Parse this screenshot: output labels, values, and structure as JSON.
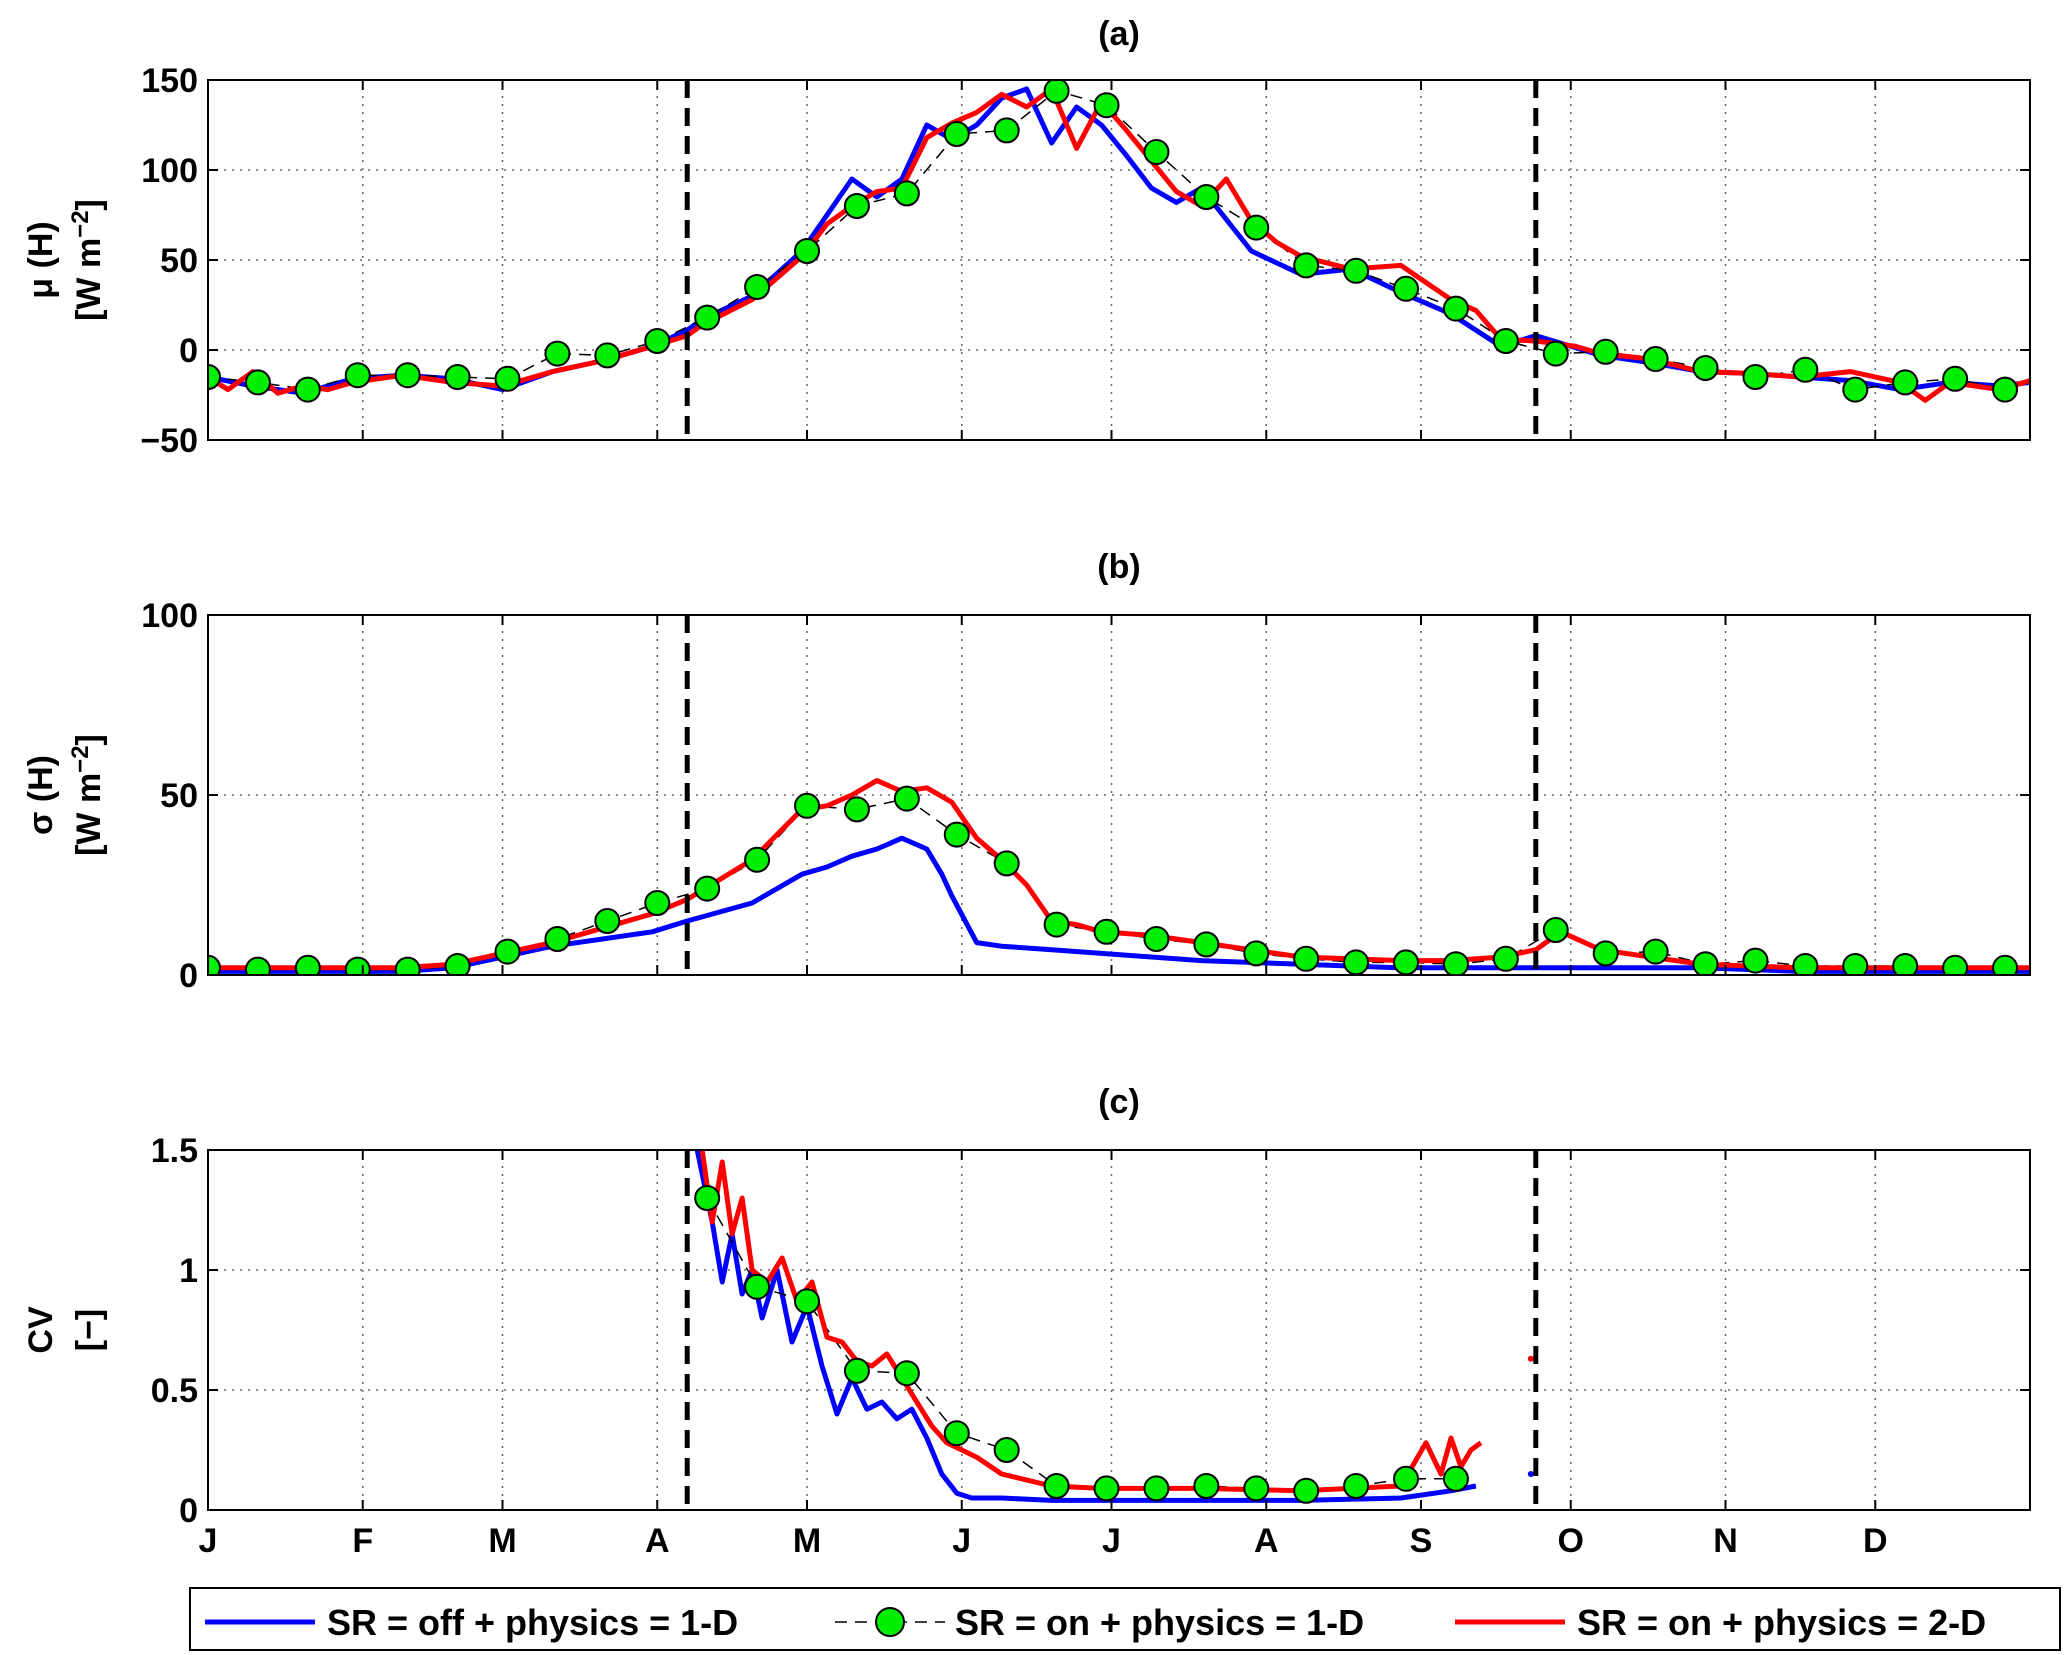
{
  "chart_data": [
    {
      "type": "line",
      "title": "(a)",
      "ylabel_line1": "μ (H)",
      "ylabel_line2": "[W m",
      "ylabel_sup": "−2",
      "ylabel_close": "]",
      "ylim": [
        -50,
        150
      ],
      "yticks": [
        150,
        100,
        50,
        0,
        -50
      ],
      "ytick_labels": [
        "150",
        "100",
        "50",
        "0",
        "−50"
      ],
      "xlim": [
        1,
        366
      ],
      "dashed_vlines": [
        97,
        267
      ],
      "grid": true,
      "series": [
        {
          "name": "SR = off + physics = 1-D",
          "color": "#0000ff",
          "style": "solid",
          "x": [
            1,
            10,
            20,
            30,
            40,
            50,
            60,
            70,
            80,
            90,
            97,
            100,
            110,
            120,
            125,
            130,
            135,
            140,
            145,
            150,
            155,
            160,
            165,
            170,
            175,
            180,
            185,
            190,
            195,
            200,
            210,
            220,
            230,
            240,
            250,
            260,
            267,
            280,
            290,
            300,
            310,
            320,
            330,
            340,
            350,
            360,
            366
          ],
          "y": [
            -15,
            -20,
            -24,
            -16,
            -14,
            -16,
            -22,
            -12,
            -6,
            2,
            11,
            17,
            30,
            55,
            75,
            95,
            85,
            95,
            125,
            117,
            125,
            140,
            145,
            115,
            135,
            125,
            108,
            90,
            82,
            90,
            55,
            42,
            45,
            32,
            20,
            2,
            8,
            -3,
            -7,
            -12,
            -13,
            -15,
            -17,
            -22,
            -18,
            -20,
            -18
          ]
        },
        {
          "name": "SR = on + physics = 1-D",
          "color": "#00ee00",
          "style": "dashed-markers",
          "x": [
            1,
            11,
            21,
            31,
            41,
            51,
            61,
            71,
            81,
            91,
            101,
            111,
            121,
            131,
            141,
            151,
            161,
            171,
            181,
            191,
            201,
            211,
            221,
            231,
            241,
            251,
            261,
            271,
            281,
            291,
            301,
            311,
            321,
            331,
            341,
            351,
            361
          ],
          "y": [
            -15,
            -18,
            -22,
            -14,
            -14,
            -15,
            -16,
            -2,
            -3,
            5,
            18,
            35,
            55,
            80,
            87,
            120,
            122,
            144,
            136,
            110,
            85,
            68,
            47,
            44,
            34,
            23,
            5,
            -2,
            -1,
            -5,
            -10,
            -15,
            -11,
            -22,
            -18,
            -16,
            -22
          ]
        },
        {
          "name": "SR = on + physics = 2-D",
          "color": "#ff0000",
          "style": "solid",
          "x": [
            1,
            5,
            10,
            15,
            20,
            25,
            30,
            40,
            50,
            60,
            70,
            80,
            90,
            97,
            100,
            110,
            120,
            125,
            130,
            135,
            140,
            145,
            150,
            155,
            160,
            165,
            170,
            175,
            180,
            185,
            190,
            195,
            200,
            205,
            210,
            215,
            220,
            230,
            240,
            250,
            255,
            260,
            267,
            275,
            280,
            290,
            300,
            310,
            320,
            330,
            340,
            345,
            350,
            360,
            366
          ],
          "y": [
            -15,
            -22,
            -12,
            -24,
            -20,
            -22,
            -18,
            -14,
            -18,
            -20,
            -12,
            -6,
            2,
            8,
            14,
            28,
            52,
            70,
            80,
            88,
            90,
            118,
            126,
            132,
            142,
            135,
            145,
            112,
            138,
            122,
            105,
            88,
            80,
            95,
            72,
            60,
            52,
            45,
            47,
            28,
            22,
            6,
            5,
            2,
            -2,
            -5,
            -12,
            -13,
            -15,
            -12,
            -18,
            -28,
            -18,
            -22,
            -17
          ]
        }
      ]
    },
    {
      "type": "line",
      "title": "(b)",
      "ylabel_line1": "σ (H)",
      "ylabel_line2": "[W m",
      "ylabel_sup": "−2",
      "ylabel_close": "]",
      "ylim": [
        0,
        100
      ],
      "yticks": [
        100,
        50,
        0
      ],
      "ytick_labels": [
        "100",
        "50",
        "0"
      ],
      "xlim": [
        1,
        366
      ],
      "dashed_vlines": [
        97,
        267
      ],
      "grid": true,
      "series": [
        {
          "name": "SR = off + physics = 1-D",
          "color": "#0000ff",
          "style": "solid",
          "x": [
            1,
            20,
            40,
            50,
            60,
            70,
            80,
            90,
            97,
            110,
            120,
            125,
            130,
            135,
            140,
            145,
            148,
            150,
            155,
            160,
            170,
            180,
            190,
            200,
            220,
            240,
            260,
            280,
            300,
            320,
            340,
            366
          ],
          "y": [
            1,
            1,
            1,
            2,
            5,
            8,
            10,
            12,
            15,
            20,
            28,
            30,
            33,
            35,
            38,
            35,
            28,
            22,
            9,
            8,
            7,
            6,
            5,
            4,
            3,
            2,
            2,
            2,
            2,
            1,
            1,
            1
          ]
        },
        {
          "name": "SR = on + physics = 1-D",
          "color": "#00ee00",
          "style": "dashed-markers",
          "x": [
            1,
            11,
            21,
            31,
            41,
            51,
            61,
            71,
            81,
            91,
            101,
            111,
            121,
            131,
            141,
            151,
            161,
            171,
            181,
            191,
            201,
            211,
            221,
            231,
            241,
            251,
            261,
            271,
            281,
            291,
            301,
            311,
            321,
            331,
            341,
            351,
            361
          ],
          "y": [
            2,
            1.5,
            2,
            1.5,
            1.5,
            2.5,
            6.5,
            10,
            15,
            20,
            24,
            32,
            47,
            46,
            49,
            39,
            31,
            14,
            12,
            10,
            8.5,
            6,
            4.5,
            3.5,
            3.5,
            3,
            4.5,
            12.5,
            6,
            6.5,
            3,
            4,
            2.5,
            2.5,
            2.5,
            2,
            2
          ]
        },
        {
          "name": "SR = on + physics = 2-D",
          "color": "#ff0000",
          "style": "solid",
          "x": [
            1,
            20,
            40,
            50,
            60,
            70,
            80,
            90,
            97,
            110,
            120,
            125,
            130,
            135,
            140,
            145,
            150,
            155,
            160,
            165,
            170,
            175,
            180,
            190,
            200,
            220,
            240,
            250,
            260,
            267,
            272,
            280,
            290,
            300,
            320,
            340,
            366
          ],
          "y": [
            2,
            2,
            2,
            3,
            6,
            9,
            13,
            17,
            21,
            32,
            46,
            47,
            50,
            54,
            51,
            52,
            48,
            38,
            32,
            25,
            15,
            14,
            12,
            11,
            9,
            5,
            4,
            4,
            5,
            7,
            12,
            7,
            5,
            3,
            2,
            2,
            2
          ]
        }
      ]
    },
    {
      "type": "line",
      "title": "(c)",
      "ylabel_line1": "CV",
      "ylabel_line2": "[−]",
      "ylabel_sup": "",
      "ylabel_close": "",
      "ylim": [
        0,
        1.5
      ],
      "yticks": [
        1.5,
        1,
        0.5,
        0
      ],
      "ytick_labels": [
        "1.5",
        "1",
        "0.5",
        "0"
      ],
      "xlim": [
        1,
        366
      ],
      "dashed_vlines": [
        97,
        267
      ],
      "grid": true,
      "series": [
        {
          "name": "SR = off + physics = 1-D",
          "color": "#0000ff",
          "style": "solid",
          "x": [
            99,
            100,
            102,
            104,
            106,
            108,
            110,
            112,
            115,
            118,
            121,
            124,
            127,
            130,
            133,
            136,
            139,
            142,
            145,
            148,
            151,
            154,
            160,
            170,
            180,
            200,
            220,
            240,
            250,
            255
          ],
          "y": [
            1.5,
            1.4,
            1.2,
            0.95,
            1.15,
            0.9,
            1.0,
            0.8,
            1.0,
            0.7,
            0.85,
            0.6,
            0.4,
            0.55,
            0.42,
            0.45,
            0.38,
            0.42,
            0.3,
            0.15,
            0.07,
            0.05,
            0.05,
            0.04,
            0.04,
            0.04,
            0.04,
            0.05,
            0.08,
            0.1
          ],
          "extra_points": [
            [
              266,
              0.15
            ]
          ]
        },
        {
          "name": "SR = on + physics = 1-D",
          "color": "#00ee00",
          "style": "dashed-markers",
          "x": [
            101,
            111,
            121,
            131,
            141,
            151,
            161,
            171,
            181,
            191,
            201,
            211,
            221,
            231,
            241,
            251
          ],
          "y": [
            1.3,
            0.93,
            0.87,
            0.58,
            0.57,
            0.32,
            0.25,
            0.1,
            0.09,
            0.09,
            0.1,
            0.09,
            0.08,
            0.1,
            0.13,
            0.13
          ]
        },
        {
          "name": "SR = on + physics = 2-D",
          "color": "#ff0000",
          "style": "solid",
          "x": [
            100,
            102,
            104,
            106,
            108,
            110,
            113,
            116,
            119,
            122,
            125,
            128,
            131,
            134,
            137,
            140,
            143,
            146,
            149,
            152,
            155,
            160,
            170,
            180,
            200,
            220,
            240,
            245,
            248,
            250,
            252,
            254,
            256
          ],
          "y": [
            1.5,
            1.2,
            1.45,
            1.15,
            1.3,
            1.0,
            0.95,
            1.05,
            0.87,
            0.95,
            0.72,
            0.7,
            0.62,
            0.6,
            0.65,
            0.55,
            0.45,
            0.35,
            0.28,
            0.25,
            0.22,
            0.15,
            0.1,
            0.09,
            0.09,
            0.08,
            0.1,
            0.28,
            0.15,
            0.3,
            0.18,
            0.25,
            0.28
          ],
          "extra_points": [
            [
              266,
              0.63
            ]
          ]
        }
      ]
    }
  ],
  "x_tick_labels": [
    "J",
    "F",
    "M",
    "A",
    "M",
    "J",
    "J",
    "A",
    "S",
    "O",
    "N",
    "D"
  ],
  "x_tick_days": [
    1,
    32,
    60,
    91,
    121,
    152,
    182,
    213,
    244,
    274,
    305,
    335
  ],
  "legend": {
    "placement": "bottom",
    "items": [
      {
        "label": "SR = off + physics = 1-D",
        "color": "#0000ff",
        "marker": "line"
      },
      {
        "label": "SR = on + physics = 1-D",
        "color": "#00ee00",
        "marker": "circle-dashed"
      },
      {
        "label": "SR = on + physics = 2-D",
        "color": "#ff0000",
        "marker": "line"
      }
    ]
  }
}
